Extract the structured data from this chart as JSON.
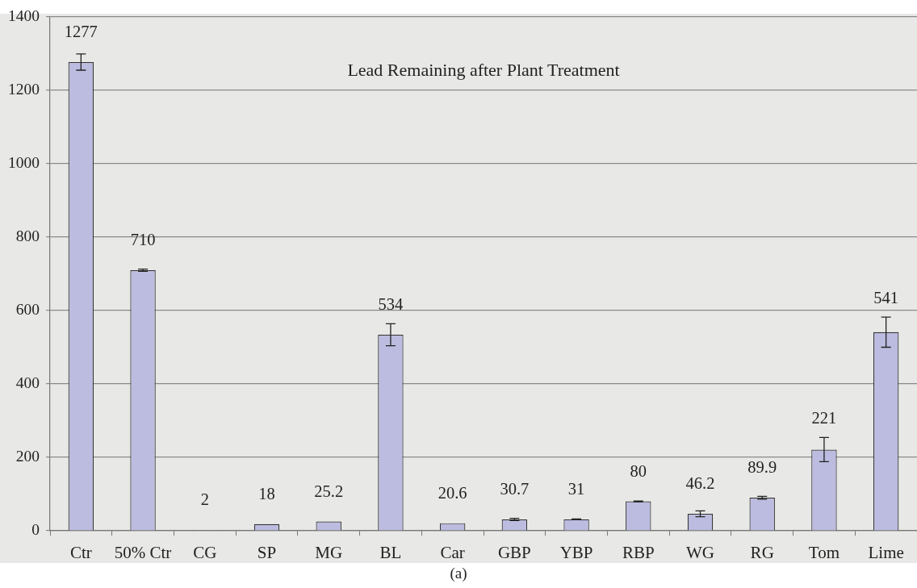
{
  "chart_data": {
    "type": "bar",
    "title": "Lead Remaining after Plant Treatment",
    "categories": [
      "Ctr",
      "50% Ctr",
      "CG",
      "SP",
      "MG",
      "BL",
      "Car",
      "GBP",
      "YBP",
      "RBP",
      "WG",
      "RG",
      "Tom",
      "Lime"
    ],
    "values": [
      1277,
      710,
      2,
      18,
      25.2,
      534,
      20.6,
      30.7,
      31,
      80,
      46.2,
      89.9,
      221,
      541
    ],
    "errors": [
      22,
      3,
      null,
      null,
      null,
      30,
      null,
      3,
      1,
      1,
      8,
      4,
      33,
      41
    ],
    "color": "#bcbce0",
    "ylim": [
      0,
      1400
    ],
    "yticks": [
      0,
      200,
      400,
      600,
      800,
      1000,
      1200,
      1400
    ],
    "grid": "y",
    "data_labels": true,
    "annotations": [
      "(a)"
    ]
  }
}
